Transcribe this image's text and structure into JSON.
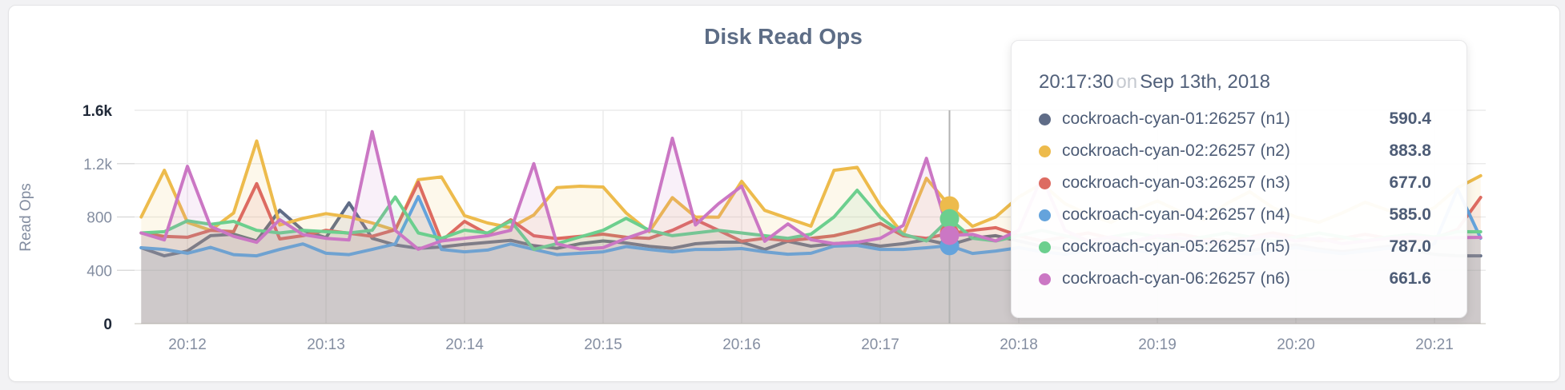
{
  "chart_data": {
    "type": "line",
    "title": "Disk Read Ops",
    "ylabel": "Read Ops",
    "x_ticks": [
      "20:12",
      "20:13",
      "20:14",
      "20:15",
      "20:16",
      "20:17",
      "20:18",
      "20:19",
      "20:20",
      "20:21"
    ],
    "y_ticks": [
      {
        "label": "1.6k",
        "value": 1600,
        "bold": true
      },
      {
        "label": "1.2k",
        "value": 1200,
        "bold": false
      },
      {
        "label": "800",
        "value": 800,
        "bold": false
      },
      {
        "label": "400",
        "value": 400,
        "bold": false
      },
      {
        "label": "0",
        "value": 0,
        "bold": true
      }
    ],
    "ylim": [
      0,
      1600
    ],
    "x_start_time": "20:11:40",
    "x_step_seconds": 10,
    "grid": true,
    "legend_position": "tooltip",
    "hover_index": 35,
    "hover_line_color": "#b3b3b3",
    "grid_color": "#ebebeb",
    "series": [
      {
        "name": "cockroach-cyan-01:26257 (n1)",
        "color": "#5f6c87",
        "values": [
          569,
          509,
          545,
          660,
          671,
          620,
          851,
          700,
          645,
          906,
          640,
          590,
          565,
          575,
          595,
          610,
          625,
          585,
          565,
          600,
          620,
          605,
          580,
          565,
          599,
          611,
          611,
          557,
          618,
          581,
          600,
          611,
          581,
          600,
          629,
          590.4,
          641,
          660,
          620,
          580,
          560,
          590,
          610,
          580,
          560,
          580,
          600,
          570,
          550,
          570,
          590,
          560,
          540,
          560,
          580,
          550,
          520,
          509,
          509
        ]
      },
      {
        "name": "cockroach-cyan-02:26257 (n2)",
        "color": "#edbb4c",
        "values": [
          800,
          1150,
          760,
          700,
          830,
          1370,
          740,
          790,
          825,
          800,
          755,
          700,
          1080,
          1100,
          810,
          755,
          720,
          815,
          1020,
          1031,
          1025,
          830,
          690,
          945,
          800,
          799,
          1067,
          850,
          790,
          731,
          1150,
          1172,
          887,
          670,
          1090,
          883.8,
          730,
          800,
          950,
          1050,
          900,
          820,
          760,
          850,
          920,
          840,
          780,
          900,
          990,
          870,
          800,
          760,
          830,
          910,
          850,
          800,
          870,
          1019,
          1109
        ]
      },
      {
        "name": "cockroach-cyan-03:26257 (n3)",
        "color": "#dd6b61",
        "values": [
          680,
          655,
          648,
          700,
          690,
          1050,
          635,
          660,
          700,
          678,
          655,
          705,
          1060,
          620,
          767,
          671,
          779,
          659,
          638,
          655,
          671,
          648,
          640,
          700,
          780,
          700,
          618,
          640,
          622,
          640,
          659,
          700,
          752,
          659,
          640,
          677,
          700,
          720,
          660,
          620,
          650,
          680,
          640,
          620,
          650,
          670,
          640,
          620,
          650,
          680,
          650,
          620,
          640,
          670,
          640,
          620,
          640,
          707,
          947
        ]
      },
      {
        "name": "cockroach-cyan-04:26257 (n4)",
        "color": "#64a3dc",
        "values": [
          569,
          557,
          528,
          572,
          518,
          509,
          557,
          598,
          528,
          518,
          557,
          598,
          953,
          557,
          539,
          552,
          598,
          557,
          518,
          528,
          539,
          578,
          557,
          539,
          557,
          557,
          563,
          539,
          521,
          528,
          581,
          587,
          557,
          557,
          569,
          585,
          527,
          545,
          570,
          540,
          520,
          550,
          580,
          550,
          530,
          550,
          570,
          540,
          520,
          545,
          570,
          545,
          525,
          545,
          565,
          540,
          600,
          1010,
          641
        ]
      },
      {
        "name": "cockroach-cyan-05:26257 (n5)",
        "color": "#6ccf8e",
        "values": [
          680,
          690,
          772,
          745,
          767,
          700,
          680,
          700,
          690,
          680,
          700,
          950,
          680,
          640,
          701,
          680,
          770,
          557,
          600,
          650,
          700,
          790,
          700,
          660,
          680,
          700,
          680,
          660,
          640,
          671,
          800,
          1001,
          797,
          671,
          620,
          787,
          640,
          620,
          660,
          700,
          660,
          620,
          650,
          680,
          650,
          620,
          650,
          680,
          650,
          620,
          650,
          680,
          650,
          620,
          650,
          670,
          650,
          690,
          689
        ]
      },
      {
        "name": "cockroach-cyan-06:26257 (n6)",
        "color": "#cb77c4",
        "values": [
          680,
          628,
          1180,
          730,
          655,
          610,
          780,
          668,
          640,
          628,
          1440,
          700,
          558,
          620,
          640,
          659,
          700,
          1200,
          598,
          560,
          570,
          640,
          700,
          1390,
          740,
          900,
          1031,
          618,
          748,
          630,
          600,
          610,
          640,
          737,
          1240,
          661.6,
          670,
          620,
          700,
          1100,
          700,
          620,
          650,
          620,
          660,
          640,
          620,
          600,
          640,
          660,
          620,
          640,
          600,
          620,
          640,
          650,
          640,
          645,
          647
        ]
      }
    ]
  },
  "tooltip": {
    "time": "20:17:30",
    "connector": "on",
    "date": "Sep 13th, 2018",
    "rows": [
      {
        "label": "cockroach-cyan-01:26257 (n1)",
        "value": "590.4",
        "color": "#5f6c87"
      },
      {
        "label": "cockroach-cyan-02:26257 (n2)",
        "value": "883.8",
        "color": "#edbb4c"
      },
      {
        "label": "cockroach-cyan-03:26257 (n3)",
        "value": "677.0",
        "color": "#dd6b61"
      },
      {
        "label": "cockroach-cyan-04:26257 (n4)",
        "value": "585.0",
        "color": "#64a3dc"
      },
      {
        "label": "cockroach-cyan-05:26257 (n5)",
        "value": "787.0",
        "color": "#6ccf8e"
      },
      {
        "label": "cockroach-cyan-06:26257 (n6)",
        "value": "661.6",
        "color": "#cb77c4"
      }
    ]
  }
}
